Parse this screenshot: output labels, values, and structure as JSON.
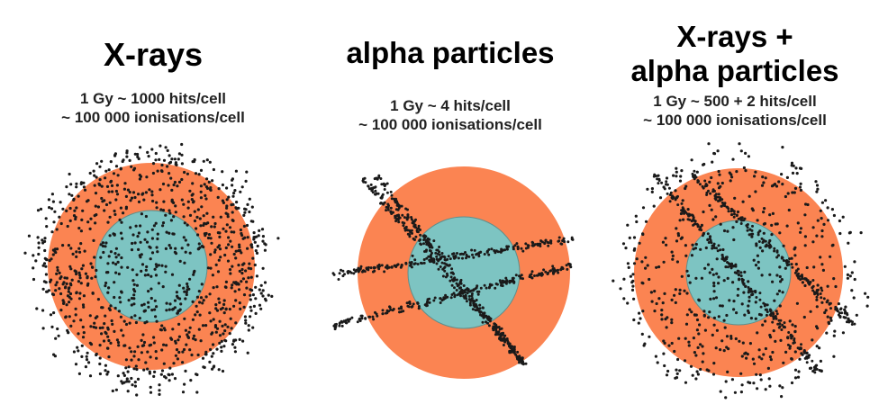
{
  "colors": {
    "cytoplasm": "#fb8452",
    "nucleus": "#7dc4c2",
    "nucleus_stroke": "#5f8f8c",
    "dots": "#1a1a1a",
    "background": "#ffffff"
  },
  "panels": [
    {
      "title_lines": [
        "X-rays"
      ],
      "dose_line": "1 Gy  ~ 1000 hits/cell",
      "ionisation_line": "~ 100 000 ionisations/cell",
      "pattern": "scattered"
    },
    {
      "title_lines": [
        "alpha particles"
      ],
      "dose_line": "1 Gy  ~  4 hits/cell",
      "ionisation_line": "~ 100 000 ionisations/cell",
      "pattern": "tracks"
    },
    {
      "title_lines": [
        "X-rays +",
        "alpha particles"
      ],
      "dose_line": "1 Gy  ~  500 + 2 hits/cell",
      "ionisation_line": "~ 100 000 ionisations/cell",
      "pattern": "mixed"
    }
  ]
}
